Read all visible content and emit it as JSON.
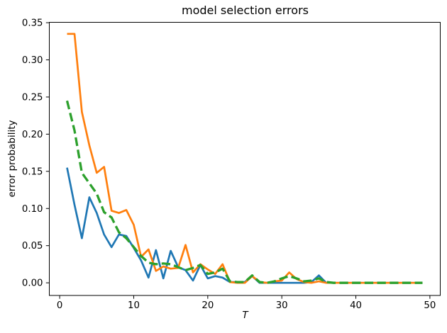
{
  "figure": {
    "title": "model selection errors",
    "xlabel": "T",
    "ylabel": "error probability"
  },
  "chart_data": {
    "type": "line",
    "title": "model selection errors",
    "xlabel": "T",
    "ylabel": "error probability",
    "grid": false,
    "legend": null,
    "xlim": [
      -1.4,
      51.4
    ],
    "ylim": [
      -0.017,
      0.3505
    ],
    "xticks": [
      0,
      10,
      20,
      30,
      40,
      50
    ],
    "xtick_labels": [
      "0",
      "10",
      "20",
      "30",
      "40",
      "50"
    ],
    "yticks": [
      0.0,
      0.05,
      0.1,
      0.15,
      0.2,
      0.25,
      0.3,
      0.35
    ],
    "ytick_labels": [
      "0.00",
      "0.05",
      "0.10",
      "0.15",
      "0.20",
      "0.25",
      "0.30",
      "0.35"
    ],
    "x": [
      1,
      2,
      3,
      4,
      5,
      6,
      7,
      8,
      9,
      10,
      11,
      12,
      13,
      14,
      15,
      16,
      17,
      18,
      19,
      20,
      21,
      22,
      23,
      24,
      25,
      26,
      27,
      28,
      29,
      30,
      31,
      32,
      33,
      34,
      35,
      36,
      37,
      38,
      39,
      40,
      41,
      42,
      43,
      44,
      45,
      46,
      47,
      48,
      49
    ],
    "series": [
      {
        "name": "series-1-blue",
        "color": "#1f77b4",
        "style": "solid",
        "values": [
          0.155,
          0.105,
          0.06,
          0.115,
          0.094,
          0.065,
          0.048,
          0.065,
          0.063,
          0.047,
          0.03,
          0.007,
          0.044,
          0.006,
          0.043,
          0.021,
          0.017,
          0.003,
          0.024,
          0.006,
          0.009,
          0.007,
          0.001,
          0.001,
          0.001,
          0.009,
          0.0,
          0.0,
          0.0,
          0.0,
          0.0,
          0.0,
          0.0,
          0.001,
          0.01,
          0.0,
          0.0,
          0.0,
          0.0,
          0.0,
          0.0,
          0.0,
          0.0,
          0.0,
          0.0,
          0.0,
          0.0,
          0.0,
          0.0
        ]
      },
      {
        "name": "series-2-orange",
        "color": "#ff7f0e",
        "style": "solid",
        "values": [
          0.335,
          0.335,
          0.23,
          0.185,
          0.148,
          0.156,
          0.097,
          0.094,
          0.098,
          0.078,
          0.035,
          0.045,
          0.016,
          0.022,
          0.019,
          0.02,
          0.051,
          0.014,
          0.025,
          0.018,
          0.012,
          0.025,
          0.001,
          0.0,
          0.0,
          0.009,
          0.001,
          0.0,
          0.002,
          0.003,
          0.014,
          0.005,
          0.001,
          0.0,
          0.002,
          0.0,
          0.0,
          0.0,
          0.0,
          0.0,
          0.0,
          0.0,
          0.0,
          0.0,
          0.0,
          0.0,
          0.0,
          0.0,
          0.0
        ]
      },
      {
        "name": "series-3-green-dashed",
        "color": "#2ca02c",
        "style": "dashed",
        "values": [
          0.245,
          0.205,
          0.148,
          0.134,
          0.12,
          0.095,
          0.088,
          0.068,
          0.06,
          0.048,
          0.036,
          0.027,
          0.025,
          0.026,
          0.025,
          0.021,
          0.017,
          0.02,
          0.024,
          0.012,
          0.014,
          0.019,
          0.002,
          0.001,
          0.001,
          0.01,
          0.001,
          0.0,
          0.002,
          0.006,
          0.009,
          0.006,
          0.002,
          0.003,
          0.006,
          0.001,
          0.0,
          0.0,
          0.0,
          0.0,
          0.0,
          0.0,
          0.0,
          0.0,
          0.0,
          0.0,
          0.0,
          0.0,
          0.0
        ]
      }
    ]
  }
}
